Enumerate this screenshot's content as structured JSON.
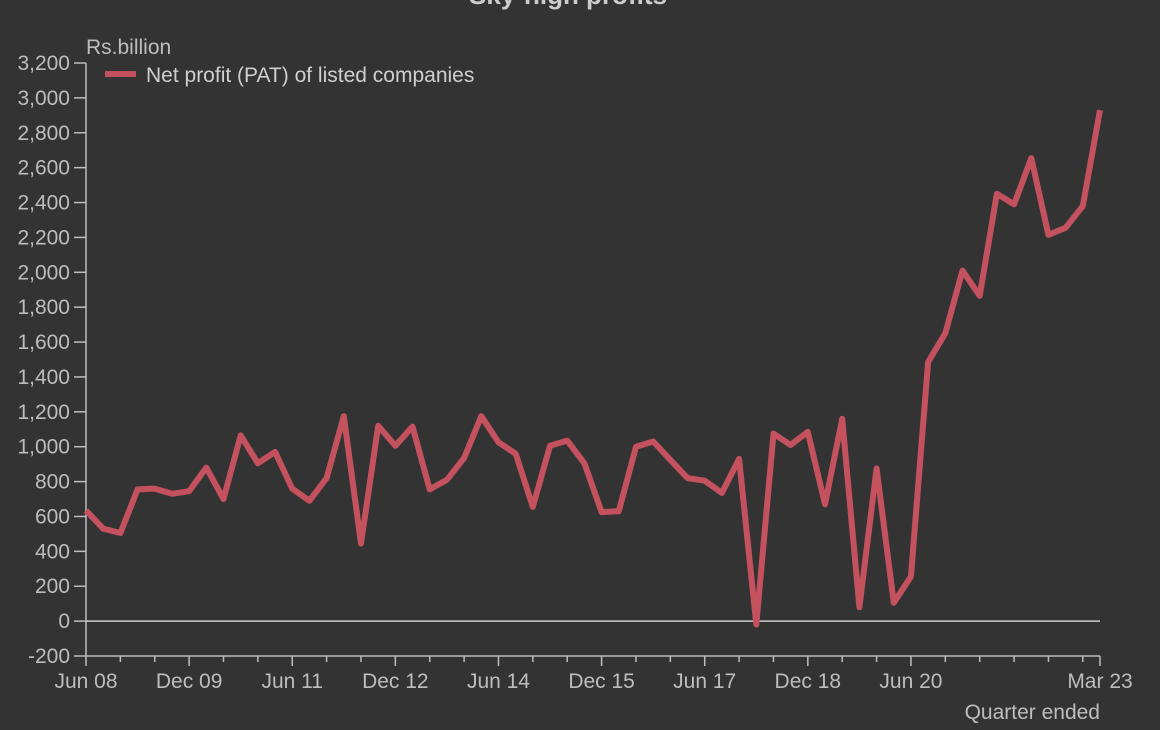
{
  "chart_data": {
    "type": "line",
    "title": "Sky-high profits",
    "ylabel": "Rs.billion",
    "xlabel": "Quarter ended",
    "ylim": [
      -200,
      3200
    ],
    "yticks": [
      -200,
      0,
      200,
      400,
      600,
      800,
      1000,
      1200,
      1400,
      1600,
      1800,
      2000,
      2200,
      2400,
      2600,
      2800,
      3000,
      3200
    ],
    "ytick_labels": [
      "-200",
      "0",
      "200",
      "400",
      "600",
      "800",
      "1,000",
      "1,200",
      "1,400",
      "1,600",
      "1,800",
      "2,000",
      "2,200",
      "2,400",
      "2,600",
      "2,800",
      "3,000",
      "3,200"
    ],
    "x_tick_labels": [
      {
        "label": "Jun 08",
        "quarter": 0
      },
      {
        "label": "Dec 09",
        "quarter": 6
      },
      {
        "label": "Jun 11",
        "quarter": 12
      },
      {
        "label": "Dec 12",
        "quarter": 18
      },
      {
        "label": "Jun 14",
        "quarter": 24
      },
      {
        "label": "Dec 15",
        "quarter": 30
      },
      {
        "label": "Jun 17",
        "quarter": 36
      },
      {
        "label": "Dec 18",
        "quarter": 42
      },
      {
        "label": "Jun 20",
        "quarter": 48
      },
      {
        "label": "Mar 23",
        "quarter": 59
      }
    ],
    "grid": false,
    "legend_position": "top-left",
    "series": [
      {
        "name": "Net profit (PAT) of listed companies",
        "color": "#c4515e",
        "start": "Jun 08",
        "frequency": "quarterly",
        "values": [
          635,
          530,
          505,
          755,
          760,
          730,
          745,
          880,
          700,
          1065,
          905,
          970,
          760,
          690,
          820,
          1175,
          445,
          1120,
          1005,
          1115,
          755,
          810,
          935,
          1175,
          1025,
          960,
          655,
          1005,
          1035,
          905,
          625,
          630,
          1000,
          1030,
          925,
          820,
          805,
          735,
          930,
          -20,
          1075,
          1010,
          1085,
          670,
          1160,
          80,
          875,
          105,
          255,
          1485,
          1650,
          2010,
          1865,
          2450,
          2390,
          2655,
          2215,
          2255,
          2380,
          2930
        ]
      }
    ]
  }
}
